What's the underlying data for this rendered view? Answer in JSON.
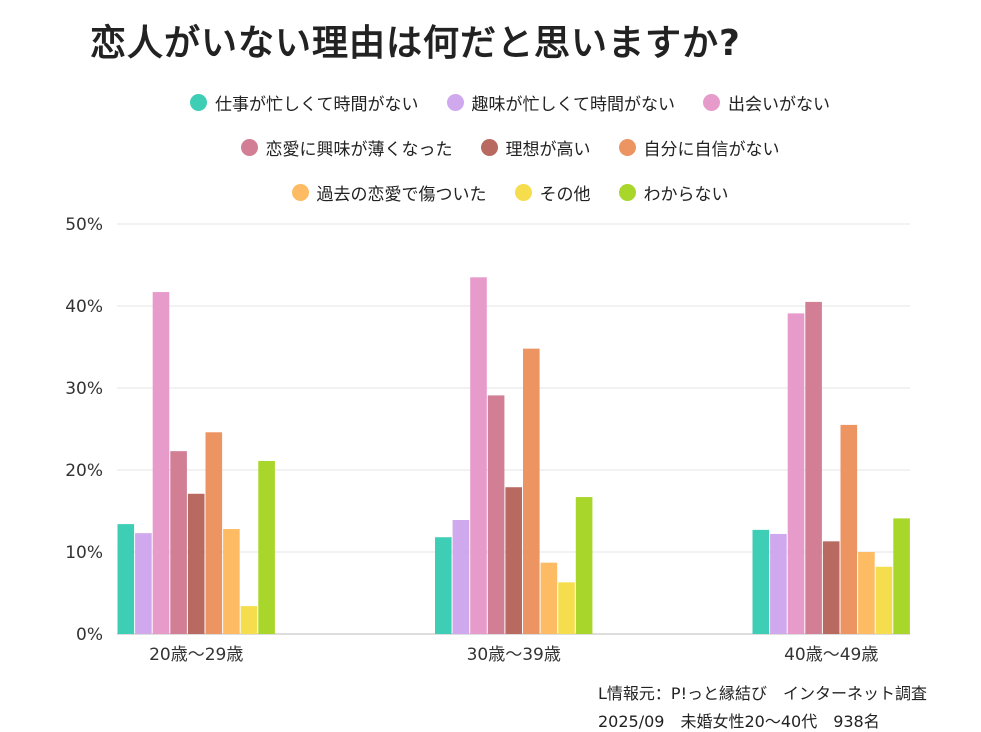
{
  "chart_data": {
    "type": "bar",
    "title": "恋人がいない理由は何だと思いますか?",
    "categories": [
      "20歳～29歳",
      "30歳～39歳",
      "40歳～49歳"
    ],
    "ylim": [
      0,
      50
    ],
    "yticks": [
      "0%",
      "10%",
      "20%",
      "30%",
      "40%",
      "50%"
    ],
    "ytick_values": [
      0,
      10,
      20,
      30,
      40,
      50
    ],
    "grid": true,
    "legend_position": "top",
    "series": [
      {
        "name": "仕事が忙しくて時間がない",
        "color": "#3ECDB5",
        "values": [
          13.4,
          11.8,
          12.7
        ]
      },
      {
        "name": "趣味が忙しくて時間がない",
        "color": "#CFA8EE",
        "values": [
          12.3,
          13.9,
          12.2
        ]
      },
      {
        "name": "出会いがない",
        "color": "#E79BCB",
        "values": [
          41.7,
          43.5,
          39.1
        ]
      },
      {
        "name": "恋愛に興味が薄くなった",
        "color": "#D27F95",
        "values": [
          22.3,
          29.1,
          40.5
        ]
      },
      {
        "name": "理想が高い",
        "color": "#B86A60",
        "values": [
          17.1,
          17.9,
          11.3
        ]
      },
      {
        "name": "自分に自信がない",
        "color": "#EC9563",
        "values": [
          24.6,
          34.8,
          25.5
        ]
      },
      {
        "name": "過去の恋愛で傷ついた",
        "color": "#FDBB63",
        "values": [
          12.8,
          8.7,
          10.0
        ]
      },
      {
        "name": "その他",
        "color": "#F6DD4E",
        "values": [
          3.4,
          6.3,
          8.2
        ]
      },
      {
        "name": "わからない",
        "color": "#A8D62A",
        "values": [
          21.1,
          16.7,
          14.1
        ]
      }
    ]
  },
  "source": {
    "line1": "L情報元：P!っと縁結び　インターネット調査",
    "line2": "2025/09　未婚女性20～40代　938名"
  }
}
